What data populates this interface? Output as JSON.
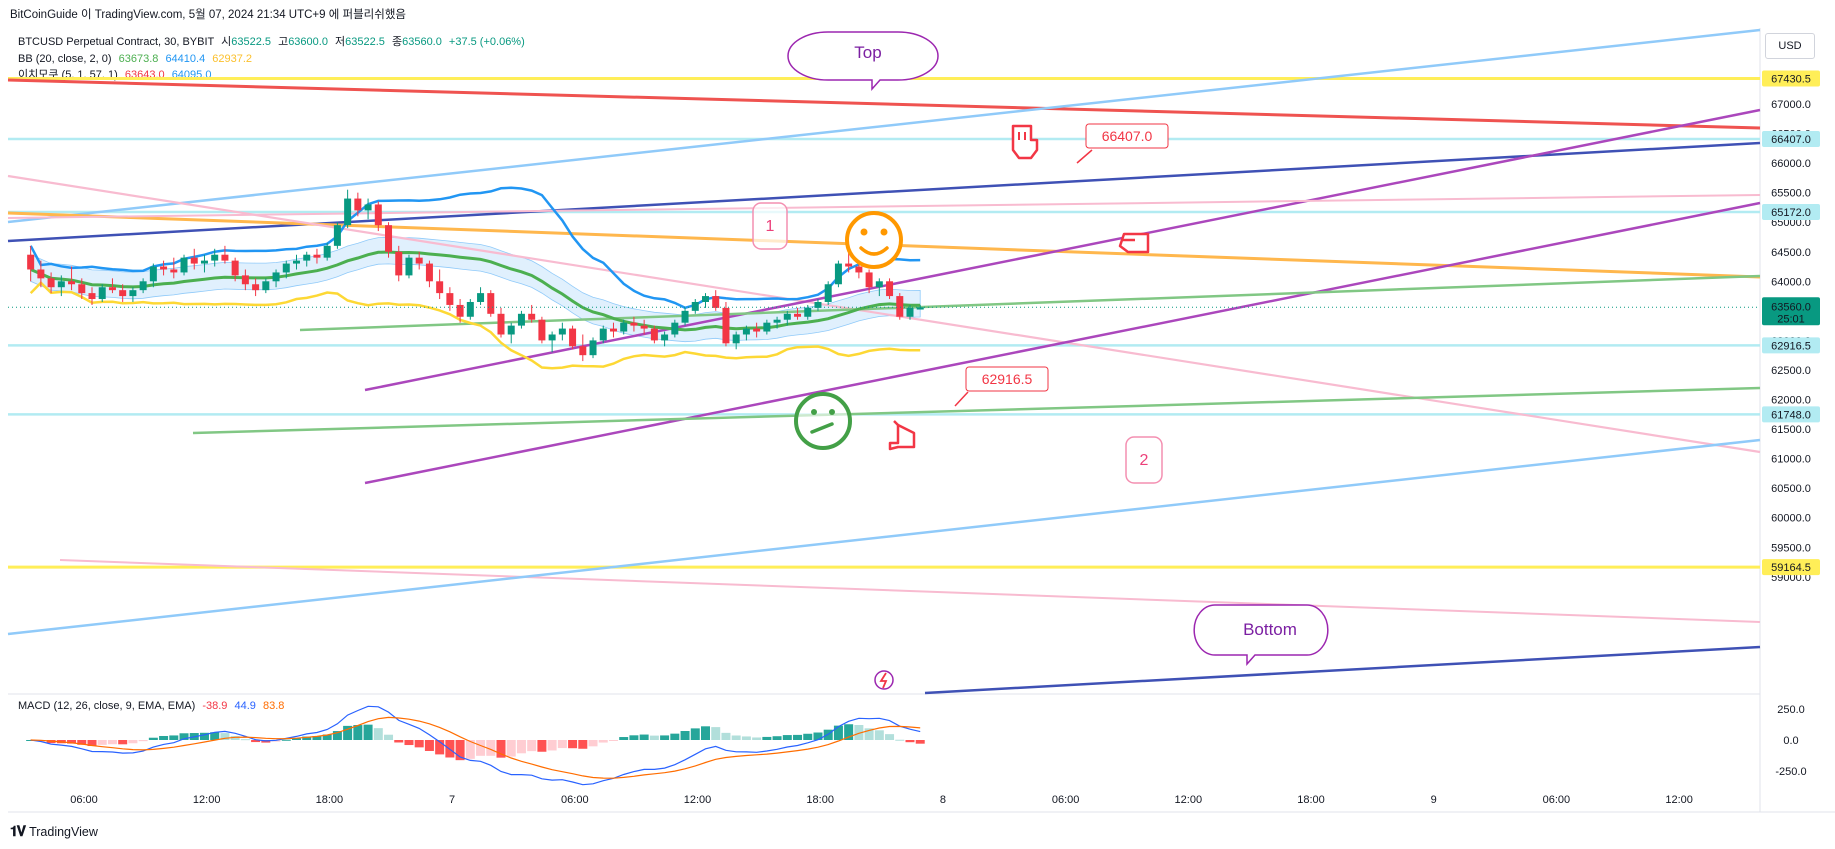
{
  "header": {
    "published_line": "BitCoinGuide 이 TradingView.com, 5월 07, 2024 21:34 UTC+9 에 퍼블리쉬했음"
  },
  "legend": {
    "symbol_line": "BTCUSD Perpetual Contract, 30, BYBIT",
    "ohlc": [
      {
        "label": "시",
        "value": "63522.5"
      },
      {
        "label": "고",
        "value": "63600.0"
      },
      {
        "label": "저",
        "value": "63522.5"
      },
      {
        "label": "종",
        "value": "63560.0"
      },
      {
        "label": "",
        "value": "+37.5 (+0.06%)"
      }
    ],
    "bb_label": "BB (20, close, 2, 0)",
    "bb_values": [
      "63673.8",
      "64410.4",
      "62937.2"
    ],
    "ichimoku_label": "이치모쿠 (5, 1, 57, 1)",
    "ichimoku_values": [
      "63643.0",
      "64095.0"
    ]
  },
  "currency_button": "USD",
  "macd_legend": {
    "label": "MACD (12, 26, close, 9, EMA, EMA)",
    "values": [
      "-38.9",
      "44.9",
      "83.8"
    ]
  },
  "brand": "TradingView",
  "colors": {
    "up": "#089981",
    "down": "#f23645",
    "bb_basis": "#4caf50",
    "bb_upper": "#2196f3",
    "bb_lower": "#ffeb3b",
    "purple": "#ab47bc",
    "navy": "#3f51b5",
    "lightblue": "#90caf9",
    "pink": "#f8bbd0",
    "orange": "#ffb74d",
    "red": "#ef5350",
    "yellow": "#ffee58",
    "green": "#81c784"
  },
  "chart_data": {
    "type": "candlestick",
    "symbol": "BTCUSD Perpetual Contract",
    "interval": "30",
    "exchange": "BYBIT",
    "ylim": [
      58900,
      68000
    ],
    "y_ticks": [
      "67000.0",
      "66500.0",
      "66000.0",
      "65500.0",
      "65000.0",
      "64500.0",
      "64000.0",
      "63500.0",
      "63000.0",
      "62500.0",
      "62000.0",
      "61500.0",
      "61000.0",
      "60500.0",
      "60000.0",
      "59500.0",
      "59000.0"
    ],
    "x_ticks": [
      {
        "label": "06:00",
        "x": "2024-05-06 06:00"
      },
      {
        "label": "12:00",
        "x": "2024-05-06 12:00"
      },
      {
        "label": "18:00",
        "x": "2024-05-06 18:00"
      },
      {
        "label": "7",
        "x": "2024-05-07 00:00"
      },
      {
        "label": "06:00",
        "x": "2024-05-07 06:00"
      },
      {
        "label": "12:00",
        "x": "2024-05-07 12:00"
      },
      {
        "label": "18:00",
        "x": "2024-05-07 18:00"
      },
      {
        "label": "8",
        "x": "2024-05-08 00:00"
      },
      {
        "label": "06:00",
        "x": "2024-05-08 06:00"
      },
      {
        "label": "12:00",
        "x": "2024-05-08 12:00"
      },
      {
        "label": "18:00",
        "x": "2024-05-08 18:00"
      },
      {
        "label": "9",
        "x": "2024-05-09 00:00"
      },
      {
        "label": "06:00",
        "x": "2024-05-09 06:00"
      },
      {
        "label": "12:00",
        "x": "2024-05-09 12:00"
      }
    ],
    "price_labels": [
      {
        "value": 67430.5,
        "text": "67430.5",
        "color": "#ffee58",
        "text_color": "#131722"
      },
      {
        "value": 66407.0,
        "text": "66407.0",
        "color": "#b2ebf2",
        "text_color": "#131722"
      },
      {
        "value": 65172.0,
        "text": "65172.0",
        "color": "#b2ebf2",
        "text_color": "#131722"
      },
      {
        "value": 62916.5,
        "text": "62916.5",
        "color": "#b2ebf2",
        "text_color": "#131722"
      },
      {
        "value": 61748.0,
        "text": "61748.0",
        "color": "#b2ebf2",
        "text_color": "#131722"
      },
      {
        "value": 59164.5,
        "text": "59164.5",
        "color": "#ffee58",
        "text_color": "#131722"
      }
    ],
    "last_price": {
      "value": 63560.0,
      "text": "63560.0",
      "countdown": "25:01",
      "color": "#089981"
    },
    "candles_ohlc": [
      [
        64450,
        64600,
        64000,
        64200
      ],
      [
        64200,
        64350,
        63900,
        64050
      ],
      [
        64050,
        64150,
        63800,
        63900
      ],
      [
        63900,
        64100,
        63750,
        64000
      ],
      [
        64000,
        64250,
        63850,
        63950
      ],
      [
        63950,
        64050,
        63700,
        63800
      ],
      [
        63800,
        63900,
        63600,
        63700
      ],
      [
        63700,
        63950,
        63650,
        63900
      ],
      [
        63900,
        64050,
        63800,
        63850
      ],
      [
        63850,
        63950,
        63650,
        63750
      ],
      [
        63750,
        63900,
        63650,
        63850
      ],
      [
        63850,
        64050,
        63800,
        64000
      ],
      [
        64000,
        64300,
        63900,
        64250
      ],
      [
        64250,
        64350,
        64100,
        64200
      ],
      [
        64200,
        64400,
        64050,
        64150
      ],
      [
        64150,
        64450,
        64100,
        64400
      ],
      [
        64400,
        64550,
        64200,
        64300
      ],
      [
        64300,
        64450,
        64150,
        64350
      ],
      [
        64350,
        64550,
        64250,
        64450
      ],
      [
        64450,
        64600,
        64300,
        64350
      ],
      [
        64350,
        64400,
        64000,
        64100
      ],
      [
        64100,
        64200,
        63850,
        63950
      ],
      [
        63950,
        64050,
        63750,
        63850
      ],
      [
        63850,
        64050,
        63800,
        64000
      ],
      [
        64000,
        64200,
        63900,
        64150
      ],
      [
        64150,
        64350,
        64050,
        64300
      ],
      [
        64300,
        64450,
        64200,
        64350
      ],
      [
        64350,
        64500,
        64250,
        64450
      ],
      [
        64450,
        64550,
        64300,
        64400
      ],
      [
        64400,
        64650,
        64350,
        64600
      ],
      [
        64600,
        65000,
        64550,
        64950
      ],
      [
        64950,
        65550,
        64900,
        65400
      ],
      [
        65400,
        65500,
        65100,
        65200
      ],
      [
        65200,
        65400,
        65050,
        65300
      ],
      [
        65300,
        65350,
        64850,
        64950
      ],
      [
        64950,
        65000,
        64400,
        64500
      ],
      [
        64500,
        64600,
        64000,
        64100
      ],
      [
        64100,
        64450,
        64050,
        64400
      ],
      [
        64400,
        64500,
        64200,
        64300
      ],
      [
        64300,
        64350,
        63900,
        64000
      ],
      [
        64000,
        64200,
        63700,
        63800
      ],
      [
        63800,
        63900,
        63500,
        63600
      ],
      [
        63600,
        63700,
        63300,
        63400
      ],
      [
        63400,
        63700,
        63350,
        63650
      ],
      [
        63650,
        63900,
        63600,
        63800
      ],
      [
        63800,
        63850,
        63400,
        63450
      ],
      [
        63450,
        63550,
        63050,
        63100
      ],
      [
        63100,
        63300,
        62950,
        63250
      ],
      [
        63250,
        63500,
        63200,
        63450
      ],
      [
        63450,
        63600,
        63300,
        63350
      ],
      [
        63350,
        63400,
        62950,
        63000
      ],
      [
        63000,
        63150,
        62800,
        63100
      ],
      [
        63100,
        63300,
        63000,
        63200
      ],
      [
        63200,
        63250,
        62850,
        62900
      ],
      [
        62900,
        63100,
        62650,
        62750
      ],
      [
        62750,
        63050,
        62700,
        63000
      ],
      [
        63000,
        63250,
        62950,
        63200
      ],
      [
        63200,
        63300,
        63050,
        63150
      ],
      [
        63150,
        63350,
        63100,
        63300
      ],
      [
        63300,
        63400,
        63150,
        63250
      ],
      [
        63250,
        63350,
        63100,
        63200
      ],
      [
        63200,
        63250,
        62950,
        63000
      ],
      [
        63000,
        63150,
        62900,
        63100
      ],
      [
        63100,
        63350,
        63050,
        63300
      ],
      [
        63300,
        63550,
        63250,
        63500
      ],
      [
        63500,
        63700,
        63450,
        63650
      ],
      [
        63650,
        63800,
        63550,
        63750
      ],
      [
        63750,
        63850,
        63500,
        63550
      ],
      [
        63550,
        63650,
        62900,
        62950
      ],
      [
        62950,
        63150,
        62850,
        63100
      ],
      [
        63100,
        63250,
        63000,
        63200
      ],
      [
        63200,
        63300,
        63050,
        63150
      ],
      [
        63150,
        63350,
        63100,
        63300
      ],
      [
        63300,
        63400,
        63200,
        63350
      ],
      [
        63350,
        63500,
        63250,
        63450
      ],
      [
        63450,
        63550,
        63350,
        63400
      ],
      [
        63400,
        63600,
        63350,
        63550
      ],
      [
        63550,
        63700,
        63500,
        63650
      ],
      [
        63650,
        64000,
        63600,
        63950
      ],
      [
        63950,
        64350,
        63900,
        64300
      ],
      [
        64300,
        64500,
        64150,
        64250
      ],
      [
        64250,
        64300,
        64050,
        64150
      ],
      [
        64150,
        64200,
        63800,
        63900
      ],
      [
        63900,
        64050,
        63750,
        64000
      ],
      [
        64000,
        64050,
        63700,
        63750
      ],
      [
        63750,
        63800,
        63350,
        63400
      ],
      [
        63400,
        63600,
        63350,
        63550
      ],
      [
        63522.5,
        63600,
        63522.5,
        63560
      ]
    ],
    "macd": {
      "label": "MACD (12, 26, close, 9, EMA, EMA)",
      "ylim": [
        -320,
        330
      ],
      "y_ticks": [
        "250.0",
        "0.0",
        "-250.0"
      ],
      "last": {
        "histogram": -38.9,
        "macd": 44.9,
        "signal": 83.8
      }
    },
    "annotations": [
      {
        "type": "callout",
        "text": "Top"
      },
      {
        "type": "callout",
        "text": "Bottom"
      },
      {
        "type": "price_note",
        "text": "66407.0"
      },
      {
        "type": "price_note",
        "text": "62916.5"
      },
      {
        "type": "marker",
        "text": "1"
      },
      {
        "type": "marker",
        "text": "2"
      }
    ]
  }
}
